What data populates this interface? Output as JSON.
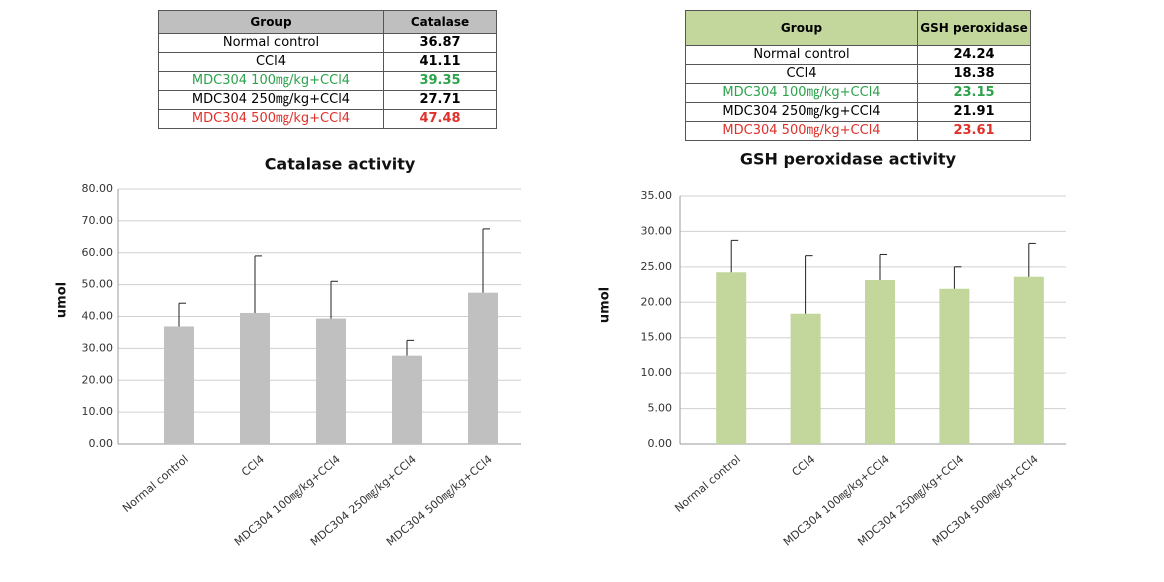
{
  "tables": [
    {
      "header": [
        "Group",
        "Catalase"
      ],
      "rows": [
        [
          "Normal control",
          36.87
        ],
        [
          "CCl4",
          41.11
        ],
        [
          "MDC304 100㎎/kg+CCl4",
          39.35
        ],
        [
          "MDC304 250㎎/kg+CCl4",
          27.71
        ],
        [
          "MDC304 500㎎/kg+CCl4",
          47.48
        ]
      ]
    },
    {
      "header": [
        "Group",
        "GSH peroxidase"
      ],
      "rows": [
        [
          "Normal control",
          24.24
        ],
        [
          "CCl4",
          18.38
        ],
        [
          "MDC304 100㎎/kg+CCl4",
          23.15
        ],
        [
          "MDC304 250㎎/kg+CCl4",
          21.91
        ],
        [
          "MDC304 500㎎/kg+CCl4",
          23.61
        ]
      ]
    }
  ],
  "chart_data": [
    {
      "type": "bar",
      "title": "Catalase activity",
      "y_label": "umol",
      "categories": [
        "Normal control",
        "CCl4",
        "MDC304 100㎎/kg+CCl4",
        "MDC304 250㎎/kg+CCl4",
        "MDC304 500㎎/kg+CCl4"
      ],
      "values": [
        36.87,
        41.11,
        39.35,
        27.71,
        47.48
      ],
      "errors": [
        7.3,
        17.9,
        11.7,
        4.8,
        20.0
      ],
      "color": "#c0c0c0",
      "ylim": [
        0,
        80
      ],
      "yticks": [
        {
          "value": 0,
          "label": "0.00"
        },
        {
          "value": 10,
          "label": "10.00"
        },
        {
          "value": 20,
          "label": "20.00"
        },
        {
          "value": 30,
          "label": "30.00"
        },
        {
          "value": 40,
          "label": "40.00"
        },
        {
          "value": 50,
          "label": "50.00"
        },
        {
          "value": 60,
          "label": "60.00"
        },
        {
          "value": 70,
          "label": "70.00"
        },
        {
          "value": 80,
          "label": "80.00"
        }
      ],
      "grid": true
    },
    {
      "type": "bar",
      "title": "GSH peroxidase activity",
      "y_label": "umol",
      "categories": [
        "Normal control",
        "CCl4",
        "MDC304 100㎎/kg+CCl4",
        "MDC304 250㎎/kg+CCl4",
        "MDC304 500㎎/kg+CCl4"
      ],
      "values": [
        24.24,
        18.38,
        23.15,
        21.91,
        23.61
      ],
      "errors": [
        4.5,
        8.2,
        3.6,
        3.1,
        4.7
      ],
      "color": "#c3d69b",
      "ylim": [
        0,
        35
      ],
      "yticks": [
        {
          "value": 0,
          "label": "0.00"
        },
        {
          "value": 5,
          "label": "5.00"
        },
        {
          "value": 10,
          "label": "10.00"
        },
        {
          "value": 15,
          "label": "15.00"
        },
        {
          "value": 20,
          "label": "20.00"
        },
        {
          "value": 25,
          "label": "25.00"
        },
        {
          "value": 30,
          "label": "30.00"
        },
        {
          "value": 35,
          "label": "35.00"
        }
      ],
      "grid": true
    }
  ]
}
